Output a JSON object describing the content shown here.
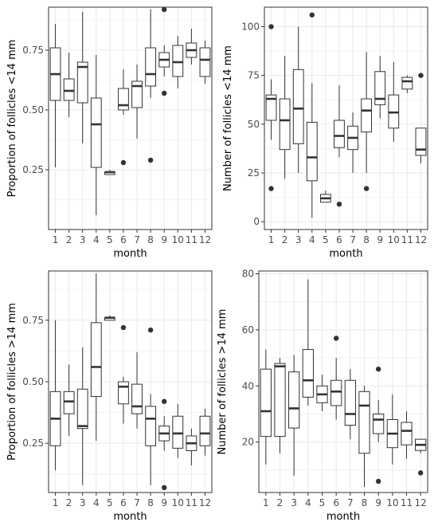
{
  "chart_data": [
    {
      "type": "boxplot",
      "xlabel": "month",
      "ylabel": "Proportion of follicles <14 mm",
      "categories": [
        "1",
        "2",
        "3",
        "4",
        "5",
        "6",
        "7",
        "8",
        "9",
        "10",
        "11",
        "12"
      ],
      "ylim": [
        0.0,
        0.93
      ],
      "yticks": [
        0.25,
        0.5,
        0.75
      ],
      "ytick_labels": [
        "0.25",
        "0.50",
        "0.75"
      ],
      "grid": true,
      "boxes": [
        {
          "month": "1",
          "whisker_low": 0.26,
          "q1": 0.54,
          "median": 0.65,
          "q3": 0.76,
          "whisker_high": 0.86,
          "outliers": []
        },
        {
          "month": "2",
          "whisker_low": 0.47,
          "q1": 0.54,
          "median": 0.58,
          "q3": 0.63,
          "whisker_high": 0.74,
          "outliers": []
        },
        {
          "month": "3",
          "whisker_low": 0.36,
          "q1": 0.53,
          "median": 0.68,
          "q3": 0.7,
          "whisker_high": 0.91,
          "outliers": []
        },
        {
          "month": "4",
          "whisker_low": 0.06,
          "q1": 0.26,
          "median": 0.44,
          "q3": 0.55,
          "whisker_high": 0.73,
          "outliers": []
        },
        {
          "month": "5",
          "whisker_low": 0.23,
          "q1": 0.23,
          "median": 0.24,
          "q3": 0.24,
          "whisker_high": 0.25,
          "outliers": []
        },
        {
          "month": "6",
          "whisker_low": 0.48,
          "q1": 0.5,
          "median": 0.52,
          "q3": 0.59,
          "whisker_high": 0.67,
          "outliers": [
            0.28
          ]
        },
        {
          "month": "7",
          "whisker_low": 0.38,
          "q1": 0.51,
          "median": 0.6,
          "q3": 0.62,
          "whisker_high": 0.69,
          "outliers": []
        },
        {
          "month": "8",
          "whisker_low": 0.55,
          "q1": 0.6,
          "median": 0.65,
          "q3": 0.76,
          "whisker_high": 0.92,
          "outliers": [
            0.29
          ]
        },
        {
          "month": "9",
          "whisker_low": 0.64,
          "q1": 0.68,
          "median": 0.71,
          "q3": 0.74,
          "whisker_high": 0.77,
          "outliers": [
            0.92,
            0.57
          ]
        },
        {
          "month": "10",
          "whisker_low": 0.59,
          "q1": 0.64,
          "median": 0.7,
          "q3": 0.77,
          "whisker_high": 0.81,
          "outliers": []
        },
        {
          "month": "11",
          "whisker_low": 0.69,
          "q1": 0.72,
          "median": 0.75,
          "q3": 0.78,
          "whisker_high": 0.84,
          "outliers": []
        },
        {
          "month": "12",
          "whisker_low": 0.61,
          "q1": 0.64,
          "median": 0.71,
          "q3": 0.76,
          "whisker_high": 0.79,
          "outliers": []
        }
      ]
    },
    {
      "type": "boxplot",
      "xlabel": "month",
      "ylabel": "Number of follicles <14 mm",
      "categories": [
        "1",
        "2",
        "3",
        "4",
        "5",
        "6",
        "7",
        "8",
        "9",
        "10",
        "11",
        "12"
      ],
      "ylim": [
        -4,
        110
      ],
      "yticks": [
        0,
        25,
        50,
        75,
        100
      ],
      "ytick_labels": [
        "0",
        "25",
        "50",
        "75",
        "100"
      ],
      "grid": true,
      "boxes": [
        {
          "month": "1",
          "whisker_low": 42,
          "q1": 52,
          "median": 63,
          "q3": 65,
          "whisker_high": 73,
          "outliers": [
            100,
            17
          ]
        },
        {
          "month": "2",
          "whisker_low": 22,
          "q1": 37,
          "median": 52,
          "q3": 63,
          "whisker_high": 85,
          "outliers": []
        },
        {
          "month": "3",
          "whisker_low": 25,
          "q1": 40,
          "median": 58,
          "q3": 78,
          "whisker_high": 100,
          "outliers": []
        },
        {
          "month": "4",
          "whisker_low": 2,
          "q1": 21,
          "median": 33,
          "q3": 51,
          "whisker_high": 71,
          "outliers": [
            106
          ]
        },
        {
          "month": "5",
          "whisker_low": 10,
          "q1": 10,
          "median": 12,
          "q3": 14,
          "whisker_high": 16,
          "outliers": []
        },
        {
          "month": "6",
          "whisker_low": 33,
          "q1": 38,
          "median": 44,
          "q3": 52,
          "whisker_high": 70,
          "outliers": [
            9
          ]
        },
        {
          "month": "7",
          "whisker_low": 25,
          "q1": 37,
          "median": 43,
          "q3": 49,
          "whisker_high": 56,
          "outliers": []
        },
        {
          "month": "8",
          "whisker_low": 25,
          "q1": 46,
          "median": 57,
          "q3": 63,
          "whisker_high": 87,
          "outliers": [
            17
          ]
        },
        {
          "month": "9",
          "whisker_low": 53,
          "q1": 60,
          "median": 63,
          "q3": 77,
          "whisker_high": 85,
          "outliers": []
        },
        {
          "month": "10",
          "whisker_low": 41,
          "q1": 48,
          "median": 56,
          "q3": 65,
          "whisker_high": 82,
          "outliers": []
        },
        {
          "month": "11",
          "whisker_low": 66,
          "q1": 68,
          "median": 72,
          "q3": 74,
          "whisker_high": 75,
          "outliers": []
        },
        {
          "month": "12",
          "whisker_low": 30,
          "q1": 34,
          "median": 37,
          "q3": 48,
          "whisker_high": 48,
          "outliers": [
            75
          ]
        }
      ]
    },
    {
      "type": "boxplot",
      "xlabel": "month",
      "ylabel": "Proportion of follicles >14 mm",
      "categories": [
        "1",
        "2",
        "3",
        "4",
        "5",
        "6",
        "7",
        "8",
        "9",
        "10",
        "11",
        "12"
      ],
      "ylim": [
        0.05,
        0.95
      ],
      "yticks": [
        0.25,
        0.5,
        0.75
      ],
      "ytick_labels": [
        "0.25",
        "0.50",
        "0.75"
      ],
      "grid": true,
      "boxes": [
        {
          "month": "1",
          "whisker_low": 0.14,
          "q1": 0.24,
          "median": 0.35,
          "q3": 0.46,
          "whisker_high": 0.75,
          "outliers": []
        },
        {
          "month": "2",
          "whisker_low": 0.28,
          "q1": 0.37,
          "median": 0.42,
          "q3": 0.46,
          "whisker_high": 0.57,
          "outliers": []
        },
        {
          "month": "3",
          "whisker_low": 0.08,
          "q1": 0.31,
          "median": 0.32,
          "q3": 0.47,
          "whisker_high": 0.64,
          "outliers": []
        },
        {
          "month": "4",
          "whisker_low": 0.26,
          "q1": 0.44,
          "median": 0.56,
          "q3": 0.74,
          "whisker_high": 0.94,
          "outliers": []
        },
        {
          "month": "5",
          "whisker_low": 0.75,
          "q1": 0.75,
          "median": 0.76,
          "q3": 0.76,
          "whisker_high": 0.77,
          "outliers": []
        },
        {
          "month": "6",
          "whisker_low": 0.33,
          "q1": 0.41,
          "median": 0.48,
          "q3": 0.5,
          "whisker_high": 0.52,
          "outliers": [
            0.72
          ]
        },
        {
          "month": "7",
          "whisker_low": 0.31,
          "q1": 0.37,
          "median": 0.4,
          "q3": 0.49,
          "whisker_high": 0.62,
          "outliers": []
        },
        {
          "month": "8",
          "whisker_low": 0.08,
          "q1": 0.24,
          "median": 0.35,
          "q3": 0.4,
          "whisker_high": 0.45,
          "outliers": [
            0.71
          ]
        },
        {
          "month": "9",
          "whisker_low": 0.22,
          "q1": 0.26,
          "median": 0.29,
          "q3": 0.32,
          "whisker_high": 0.36,
          "outliers": [
            0.42,
            0.07
          ]
        },
        {
          "month": "10",
          "whisker_low": 0.19,
          "q1": 0.23,
          "median": 0.29,
          "q3": 0.36,
          "whisker_high": 0.41,
          "outliers": []
        },
        {
          "month": "11",
          "whisker_low": 0.16,
          "q1": 0.22,
          "median": 0.25,
          "q3": 0.28,
          "whisker_high": 0.31,
          "outliers": []
        },
        {
          "month": "12",
          "whisker_low": 0.2,
          "q1": 0.24,
          "median": 0.29,
          "q3": 0.36,
          "whisker_high": 0.39,
          "outliers": []
        }
      ]
    },
    {
      "type": "boxplot",
      "xlabel": "month",
      "ylabel": "Number of follicles >14 mm",
      "categories": [
        "1",
        "2",
        "3",
        "4",
        "5",
        "6",
        "7",
        "8",
        "9",
        "10",
        "11",
        "12"
      ],
      "ylim": [
        2,
        81
      ],
      "yticks": [
        20,
        40,
        60,
        80
      ],
      "ytick_labels": [
        "20",
        "40",
        "60",
        "80"
      ],
      "grid": true,
      "boxes": [
        {
          "month": "1",
          "whisker_low": 12,
          "q1": 22,
          "median": 31,
          "q3": 46,
          "whisker_high": 53,
          "outliers": []
        },
        {
          "month": "2",
          "whisker_low": 16,
          "q1": 22,
          "median": 47,
          "q3": 48,
          "whisker_high": 50,
          "outliers": []
        },
        {
          "month": "3",
          "whisker_low": 8,
          "q1": 25,
          "median": 32,
          "q3": 45,
          "whisker_high": 51,
          "outliers": []
        },
        {
          "month": "4",
          "whisker_low": 33,
          "q1": 36,
          "median": 42,
          "q3": 53,
          "whisker_high": 78,
          "outliers": []
        },
        {
          "month": "5",
          "whisker_low": 31,
          "q1": 34,
          "median": 37,
          "q3": 40,
          "whisker_high": 44,
          "outliers": []
        },
        {
          "month": "6",
          "whisker_low": 28,
          "q1": 33,
          "median": 38,
          "q3": 42,
          "whisker_high": 50,
          "outliers": [
            57
          ]
        },
        {
          "month": "7",
          "whisker_low": 21,
          "q1": 26,
          "median": 30,
          "q3": 42,
          "whisker_high": 46,
          "outliers": []
        },
        {
          "month": "8",
          "whisker_low": 4,
          "q1": 16,
          "median": 33,
          "q3": 38,
          "whisker_high": 40,
          "outliers": []
        },
        {
          "month": "9",
          "whisker_low": 20,
          "q1": 23,
          "median": 28,
          "q3": 30,
          "whisker_high": 35,
          "outliers": [
            46,
            6
          ]
        },
        {
          "month": "10",
          "whisker_low": 12,
          "q1": 18,
          "median": 23,
          "q3": 28,
          "whisker_high": 37,
          "outliers": []
        },
        {
          "month": "11",
          "whisker_low": 14,
          "q1": 19,
          "median": 24,
          "q3": 27,
          "whisker_high": 31,
          "outliers": []
        },
        {
          "month": "12",
          "whisker_low": 16,
          "q1": 17,
          "median": 19,
          "q3": 21,
          "whisker_high": 21,
          "outliers": [
            9
          ]
        }
      ]
    }
  ],
  "style": {
    "panel_border": "#333333",
    "grid_color": "#ebebeb",
    "box_fill": "#ffffff",
    "box_stroke": "#333333",
    "outlier_color": "#333333"
  }
}
